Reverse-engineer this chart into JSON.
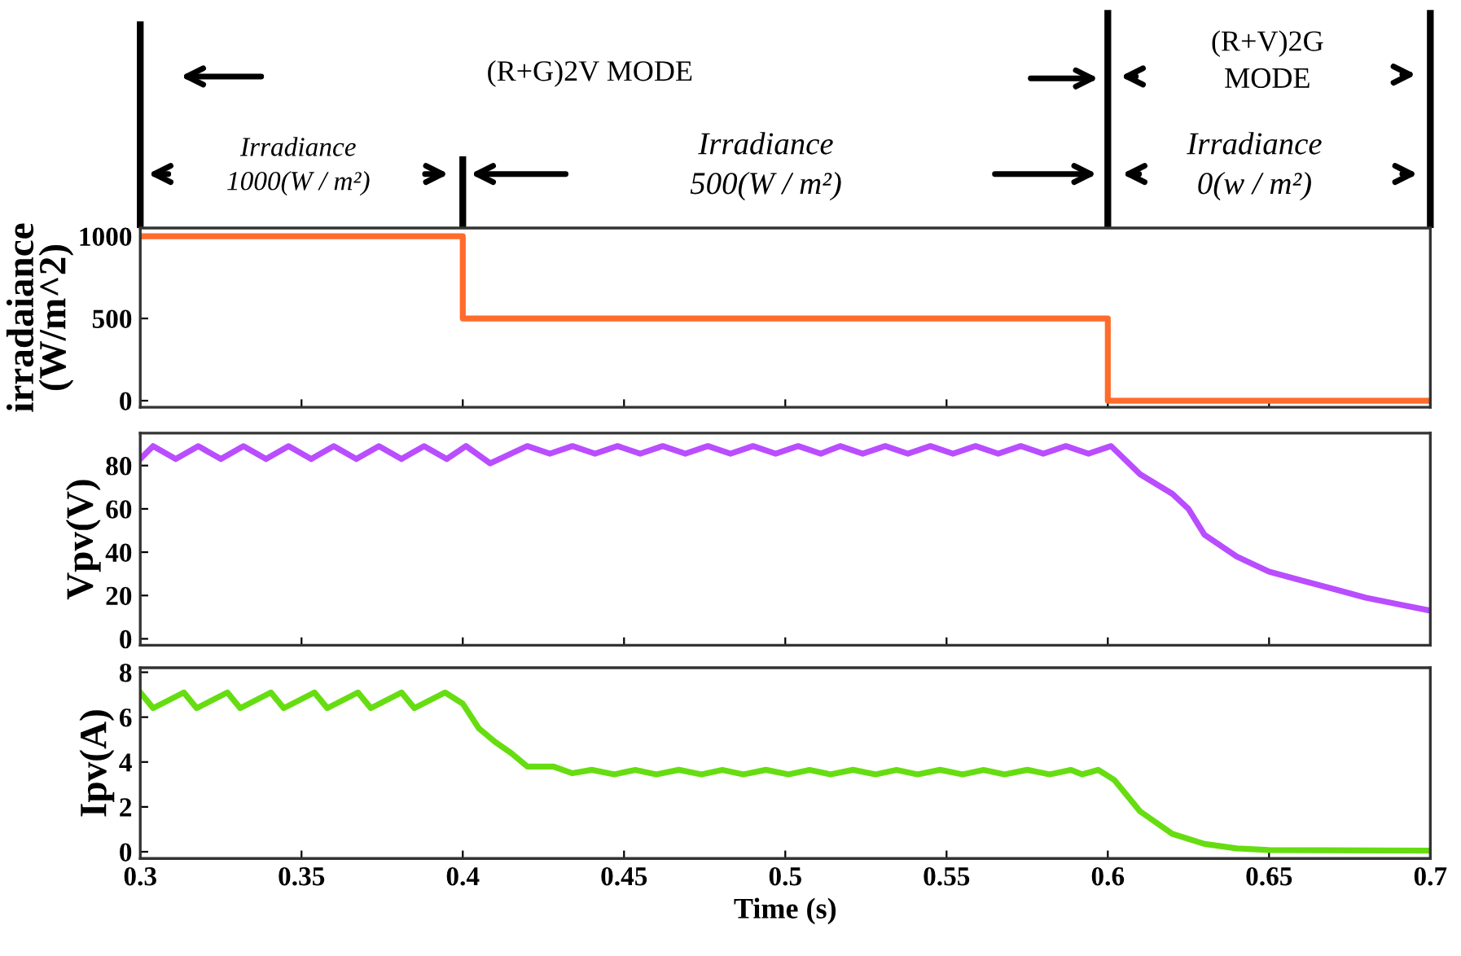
{
  "chart_data": [
    {
      "type": "line",
      "ylabel": "irradaiance\n(W/m^2)",
      "annotations": [
        "(R+G)2V MODE",
        "(R+V)2G\nMODE",
        "Irradiance\n1000(W / m²)",
        "Irradiance\n500(W / m²)",
        "Irradiance\n0(w / m²)"
      ],
      "x": [
        0.3,
        0.4,
        0.4,
        0.6,
        0.6,
        0.7
      ],
      "series": [
        {
          "color": "#ff6b2b",
          "values": [
            1000,
            1000,
            500,
            500,
            0,
            0
          ]
        }
      ],
      "xlim": [
        0.3,
        0.7
      ],
      "xticks": [
        0.3,
        0.35,
        0.4,
        0.45,
        0.5,
        0.55,
        0.6,
        0.65,
        0.7
      ],
      "ylim": [
        -40,
        1050
      ],
      "yticks": [
        0,
        500,
        1000
      ],
      "tick_labels": "y"
    },
    {
      "type": "line",
      "ylabel": "Vpv(V)",
      "x": [
        0.3,
        0.304,
        0.311,
        0.318,
        0.325,
        0.332,
        0.339,
        0.346,
        0.353,
        0.36,
        0.367,
        0.374,
        0.381,
        0.388,
        0.395,
        0.401,
        0.4085,
        0.42,
        0.427,
        0.434,
        0.441,
        0.448,
        0.455,
        0.462,
        0.469,
        0.476,
        0.483,
        0.49,
        0.497,
        0.504,
        0.511,
        0.517,
        0.524,
        0.531,
        0.538,
        0.545,
        0.552,
        0.559,
        0.566,
        0.573,
        0.58,
        0.587,
        0.594,
        0.601,
        0.61,
        0.62,
        0.625,
        0.63,
        0.64,
        0.65,
        0.66,
        0.67,
        0.68,
        0.69,
        0.7
      ],
      "series": [
        {
          "color": "#b94dff",
          "values": [
            83,
            89,
            83,
            89,
            83,
            89,
            83,
            89,
            83,
            89,
            83,
            89,
            83,
            89,
            83,
            89,
            81,
            89,
            85.5,
            89,
            85.5,
            89,
            85.5,
            89,
            85.5,
            89,
            85.5,
            89,
            85.5,
            89,
            85.5,
            89,
            85.5,
            89,
            85.5,
            89,
            85.5,
            89,
            85.5,
            89,
            85.5,
            89,
            85.5,
            89,
            76,
            67,
            60,
            48,
            38,
            31,
            27,
            23,
            19,
            16,
            13
          ]
        }
      ],
      "xlim": [
        0.3,
        0.7
      ],
      "xticks": [
        0.3,
        0.35,
        0.4,
        0.45,
        0.5,
        0.55,
        0.6,
        0.65,
        0.7
      ],
      "ylim": [
        -3,
        95
      ],
      "yticks": [
        0,
        20,
        40,
        60,
        80
      ],
      "tick_labels": "y"
    },
    {
      "type": "line",
      "ylabel": "Ipv(A)",
      "xlabel": "Time (s)",
      "x": [
        0.3,
        0.304,
        0.3135,
        0.3175,
        0.327,
        0.331,
        0.3405,
        0.3445,
        0.354,
        0.358,
        0.3675,
        0.3715,
        0.381,
        0.385,
        0.3945,
        0.4,
        0.405,
        0.41,
        0.415,
        0.42,
        0.428,
        0.434,
        0.44,
        0.447,
        0.4535,
        0.46,
        0.467,
        0.474,
        0.4805,
        0.487,
        0.494,
        0.501,
        0.5075,
        0.514,
        0.521,
        0.528,
        0.5345,
        0.541,
        0.548,
        0.555,
        0.5615,
        0.568,
        0.575,
        0.582,
        0.5885,
        0.592,
        0.597,
        0.602,
        0.61,
        0.62,
        0.63,
        0.64,
        0.65,
        0.7
      ],
      "series": [
        {
          "color": "#66dd11",
          "values": [
            7.1,
            6.4,
            7.1,
            6.4,
            7.1,
            6.4,
            7.1,
            6.4,
            7.1,
            6.4,
            7.1,
            6.4,
            7.1,
            6.4,
            7.1,
            6.6,
            5.5,
            4.9,
            4.4,
            3.8,
            3.8,
            3.5,
            3.65,
            3.45,
            3.65,
            3.45,
            3.65,
            3.45,
            3.65,
            3.45,
            3.65,
            3.45,
            3.65,
            3.45,
            3.65,
            3.45,
            3.65,
            3.45,
            3.65,
            3.45,
            3.65,
            3.45,
            3.65,
            3.45,
            3.65,
            3.45,
            3.65,
            3.2,
            1.8,
            0.8,
            0.35,
            0.15,
            0.08,
            0.05
          ]
        }
      ],
      "xlim": [
        0.3,
        0.7
      ],
      "xticks": [
        0.3,
        0.35,
        0.4,
        0.45,
        0.5,
        0.55,
        0.6,
        0.65,
        0.7
      ],
      "ylim": [
        -0.3,
        8.2
      ],
      "yticks": [
        0,
        2,
        4,
        6,
        8
      ]
    }
  ]
}
